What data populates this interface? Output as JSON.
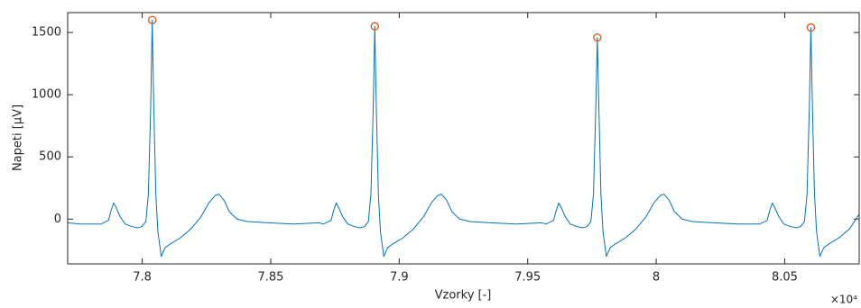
{
  "chart_data": {
    "type": "line",
    "xlabel": "Vzorky [-]",
    "ylabel": "Napeti [μV]",
    "x_multiplier": "×10⁴",
    "xlim": [
      77710,
      80790
    ],
    "ylim": [
      -360,
      1660
    ],
    "xticks": [
      {
        "value": 78000,
        "label": "7.8"
      },
      {
        "value": 78500,
        "label": "7.85"
      },
      {
        "value": 79000,
        "label": "7.9"
      },
      {
        "value": 79500,
        "label": "7.95"
      },
      {
        "value": 80000,
        "label": "8"
      },
      {
        "value": 80500,
        "label": "8.05"
      }
    ],
    "yticks": [
      0,
      500,
      1000,
      1500
    ],
    "grid": false,
    "series": [
      {
        "color": "#0072bd",
        "style": "line",
        "x": [
          77710,
          77760,
          77839,
          77869,
          77879,
          77889,
          77899,
          77914,
          77934,
          77959,
          77984,
          77999,
          78014,
          78024,
          78033,
          78039,
          78045,
          78053,
          78061,
          78074,
          78089,
          78109,
          78149,
          78189,
          78229,
          78259,
          78284,
          78299,
          78319,
          78339,
          78369,
          78409,
          78489,
          78589,
          78689,
          78705,
          78735,
          78745,
          78755,
          78765,
          78780,
          78800,
          78825,
          78850,
          78865,
          78880,
          78890,
          78899,
          78905,
          78911,
          78919,
          78927,
          78940,
          78955,
          78975,
          79015,
          79055,
          79095,
          79125,
          79150,
          79165,
          79185,
          79205,
          79235,
          79275,
          79355,
          79455,
          79555,
          79571,
          79601,
          79611,
          79621,
          79631,
          79646,
          79666,
          79691,
          79716,
          79731,
          79746,
          79756,
          79765,
          79771,
          79777,
          79785,
          79793,
          79806,
          79821,
          79841,
          79881,
          79921,
          79961,
          79991,
          80016,
          80031,
          80051,
          80071,
          80101,
          80141,
          80221,
          80321,
          80402,
          80432,
          80442,
          80452,
          80462,
          80477,
          80497,
          80522,
          80547,
          80562,
          80577,
          80587,
          80596,
          80602,
          80608,
          80616,
          80624,
          80637,
          80652,
          80672,
          80712,
          80752,
          80790
        ],
        "values": [
          -30,
          -40,
          -40,
          -10,
          70,
          130,
          90,
          20,
          -40,
          -60,
          -70,
          -60,
          -20,
          200,
          900,
          1600,
          900,
          200,
          -100,
          -300,
          -230,
          -200,
          -150,
          -80,
          20,
          130,
          190,
          200,
          150,
          60,
          0,
          -20,
          -30,
          -40,
          -30,
          -40,
          -10,
          70,
          130,
          90,
          20,
          -40,
          -60,
          -70,
          -60,
          -20,
          200,
          900,
          1550,
          900,
          200,
          -100,
          -300,
          -230,
          -200,
          -150,
          -80,
          20,
          130,
          190,
          200,
          150,
          60,
          0,
          -20,
          -30,
          -40,
          -30,
          -40,
          -10,
          70,
          130,
          90,
          20,
          -40,
          -60,
          -70,
          -60,
          -20,
          200,
          900,
          1460,
          900,
          200,
          -100,
          -300,
          -230,
          -200,
          -150,
          -80,
          20,
          130,
          190,
          200,
          150,
          60,
          0,
          -20,
          -30,
          -40,
          -40,
          -10,
          70,
          130,
          90,
          20,
          -40,
          -60,
          -70,
          -60,
          -20,
          200,
          900,
          1540,
          900,
          200,
          -100,
          -300,
          -230,
          -200,
          -150,
          -80,
          40
        ]
      },
      {
        "color": "#d95319",
        "style": "markers",
        "x": [
          78039,
          78905,
          79771,
          80602
        ],
        "values": [
          1600,
          1550,
          1460,
          1540
        ]
      }
    ]
  }
}
